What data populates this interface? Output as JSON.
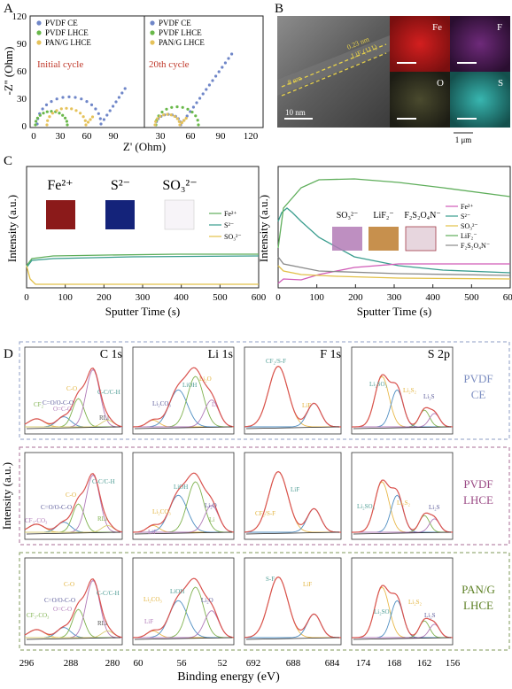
{
  "panel_labels": {
    "a": "A",
    "b": "B",
    "c": "C",
    "d": "D"
  },
  "A": {
    "legend": [
      "PVDF CE",
      "PVDF LHCE",
      "PAN/G LHCE"
    ],
    "legend_colors": [
      "#6f86c8",
      "#69b84a",
      "#e5c25a"
    ],
    "cycle1": "Initial cycle",
    "cycle2": "20th cycle",
    "ylabel": "-Z'' (Ohm)",
    "xlabel": "Z' (Ohm)",
    "yticks": [
      "0",
      "30",
      "60",
      "90",
      "120"
    ],
    "xticks_left": [
      "0",
      "30",
      "60",
      "90"
    ],
    "xticks_right": [
      "30",
      "60",
      "90",
      "120"
    ]
  },
  "B": {
    "lattice": "0.23 nm",
    "plane": "LiF (111)",
    "thickness": "8 nm",
    "scale_tem": "10 nm",
    "maps": [
      "Fe",
      "F",
      "O",
      "S"
    ],
    "scale_map": "1 μm"
  },
  "C": {
    "left_ions": [
      "Fe²⁺",
      "S²⁻",
      "SO₃²⁻"
    ],
    "left_legend": [
      "Fe²⁺",
      "S²⁻",
      "SO₃²⁻"
    ],
    "right_ions": [
      "SO₃²⁻",
      "LiF₂⁻",
      "F₂S₂O₄N⁻"
    ],
    "right_legend": [
      "Fe²⁺",
      "S²⁻",
      "SO₃²⁻",
      "LiF₂⁻",
      "F₂S₂O₄N⁻"
    ],
    "ylabel": "Intensity (a.u.)",
    "xlabel": "Sputter Time (s)",
    "xticks": [
      "0",
      "100",
      "200",
      "300",
      "400",
      "500",
      "600"
    ]
  },
  "D": {
    "columns": [
      "C 1s",
      "Li 1s",
      "F 1s",
      "S 2p"
    ],
    "rows": [
      {
        "label1": "PVDF",
        "label2": "CE",
        "color": "#7e8fc2"
      },
      {
        "label1": "PVDF",
        "label2": "LHCE",
        "color": "#9b4b86"
      },
      {
        "label1": "PAN/G",
        "label2": "LHCE",
        "color": "#5b7f22"
      }
    ],
    "ylabel": "Intensity (a.u.)",
    "xlabel": "Binding energy (eV)",
    "xticks": {
      "c": [
        "296",
        "288",
        "280"
      ],
      "li": [
        "60",
        "56",
        "52"
      ],
      "f": [
        "692",
        "688",
        "684"
      ],
      "s": [
        "174",
        "168",
        "162",
        "156"
      ]
    },
    "peak_labels": {
      "c1": [
        "C-C/C-H",
        "C-O",
        "C=O/O-C-O",
        "O=C-O",
        "CF₂",
        "RLi"
      ],
      "li1": [
        "LiOH",
        "Li₂O",
        "Li₂CO₃",
        "Li"
      ],
      "f1": [
        "CF₂/S-F",
        "LiF"
      ],
      "s1": [
        "Li₂SO₃",
        "Li₂S₂",
        "Li₂S"
      ],
      "c2": [
        "C-C/C-H",
        "C-O",
        "C=O/O-C-O",
        "CF₃-CO₃",
        "RLi"
      ],
      "li2": [
        "LiOH",
        "Li₂CO₃",
        "Li₂O",
        "LiF",
        "Li"
      ],
      "f2": [
        "LiF",
        "CF₂/S-F"
      ],
      "s2": [
        "Li₂SO₃",
        "Li₂S₂",
        "Li₂S"
      ],
      "c3": [
        "C-C/C-H",
        "C-O",
        "C=O/O-C-O",
        "O=C-O",
        "CF₃-CO₃",
        "RLi"
      ],
      "li3": [
        "LiOH",
        "Li₂CO₃",
        "Li₂O",
        "LiF"
      ],
      "f3": [
        "S-F",
        "LiF"
      ],
      "s3": [
        "Li₂SO₃",
        "Li₂S₂",
        "Li₂S"
      ]
    }
  }
}
